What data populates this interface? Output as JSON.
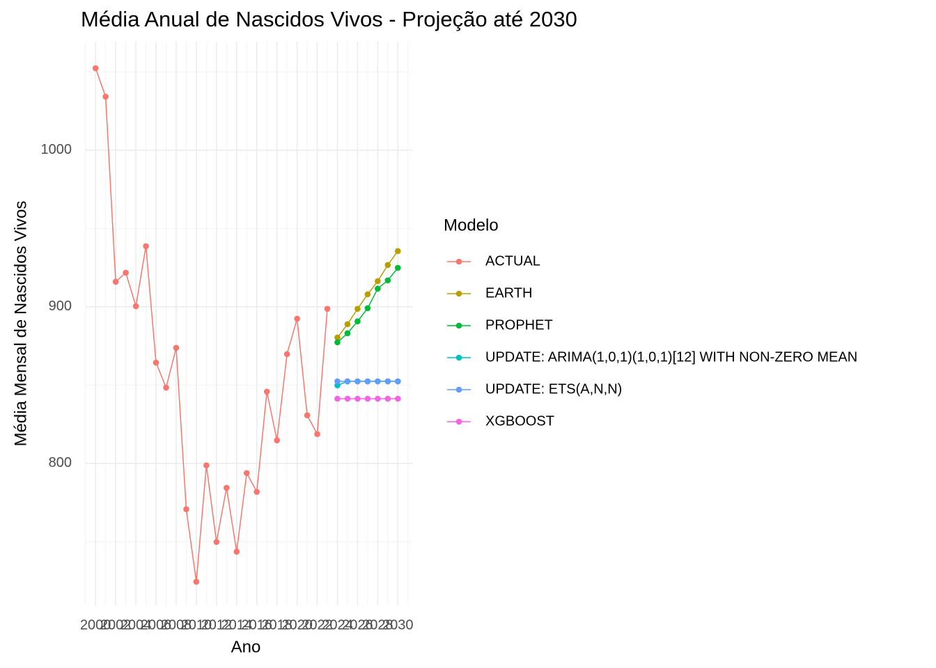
{
  "chart_data": {
    "type": "line",
    "title": "Média Anual de Nascidos Vivos - Projeção até 2030",
    "x_label": "Ano",
    "y_label": "Média Mensal de Nascidos Vivos",
    "legend_title": "Modelo",
    "legend_position": "right",
    "grid": true,
    "x": [
      2000,
      2001,
      2002,
      2003,
      2004,
      2005,
      2006,
      2007,
      2008,
      2009,
      2010,
      2011,
      2012,
      2013,
      2014,
      2015,
      2016,
      2017,
      2018,
      2019,
      2020,
      2021,
      2022,
      2023,
      2024,
      2025,
      2026,
      2027,
      2028,
      2029,
      2030
    ],
    "xlim": [
      1998.95,
      2031.5
    ],
    "xticks": [
      2000,
      2002,
      2004,
      2006,
      2008,
      2010,
      2012,
      2014,
      2016,
      2018,
      2020,
      2022,
      2024,
      2026,
      2028,
      2030
    ],
    "ylim": [
      709.3,
      1069.3
    ],
    "yticks": [
      800,
      900,
      1000
    ],
    "series": [
      {
        "name": "ACTUAL",
        "color": "#F8766D",
        "values": [
          1052.4,
          1034.2,
          916,
          921.8,
          900.4,
          938.7,
          864.4,
          848.4,
          873.8,
          770.7,
          724.4,
          798.7,
          749.8,
          784.4,
          743.6,
          793.8,
          781.8,
          845.8,
          814.7,
          869.8,
          892.4,
          830.7,
          818.7,
          898.7,
          null,
          null,
          null,
          null,
          null,
          null,
          null
        ]
      },
      {
        "name": "EARTH",
        "color": "#B79F00",
        "values": [
          null,
          null,
          null,
          null,
          null,
          null,
          null,
          null,
          null,
          null,
          null,
          null,
          null,
          null,
          null,
          null,
          null,
          null,
          null,
          null,
          null,
          null,
          null,
          null,
          880.4,
          888.9,
          898.7,
          908,
          916.4,
          926.7,
          935.6
        ]
      },
      {
        "name": "PROPHET",
        "color": "#00BA38",
        "values": [
          null,
          null,
          null,
          null,
          null,
          null,
          null,
          null,
          null,
          null,
          null,
          null,
          null,
          null,
          null,
          null,
          null,
          null,
          null,
          null,
          null,
          null,
          null,
          null,
          877.3,
          883.1,
          890.7,
          899.1,
          911.6,
          916.9,
          924.9
        ]
      },
      {
        "name": "UPDATE: ARIMA(1,0,1)(1,0,1)[12] WITH NON-ZERO MEAN",
        "color": "#00BFC4",
        "values": [
          null,
          null,
          null,
          null,
          null,
          null,
          null,
          null,
          null,
          null,
          null,
          null,
          null,
          null,
          null,
          null,
          null,
          null,
          null,
          null,
          null,
          null,
          null,
          null,
          849.8,
          852.4,
          852.4,
          852.4,
          852.4,
          852.4,
          852.4
        ]
      },
      {
        "name": "UPDATE: ETS(A,N,N)",
        "color": "#619CFF",
        "values": [
          null,
          null,
          null,
          null,
          null,
          null,
          null,
          null,
          null,
          null,
          null,
          null,
          null,
          null,
          null,
          null,
          null,
          null,
          null,
          null,
          null,
          null,
          null,
          null,
          852.4,
          852.4,
          852.4,
          852.4,
          852.4,
          852.4,
          852.4
        ]
      },
      {
        "name": "XGBOOST",
        "color": "#F564E3",
        "values": [
          null,
          null,
          null,
          null,
          null,
          null,
          null,
          null,
          null,
          null,
          null,
          null,
          null,
          null,
          null,
          null,
          null,
          null,
          null,
          null,
          null,
          null,
          null,
          null,
          841.3,
          841.3,
          841.3,
          841.3,
          841.3,
          841.3,
          841.3
        ]
      }
    ]
  }
}
